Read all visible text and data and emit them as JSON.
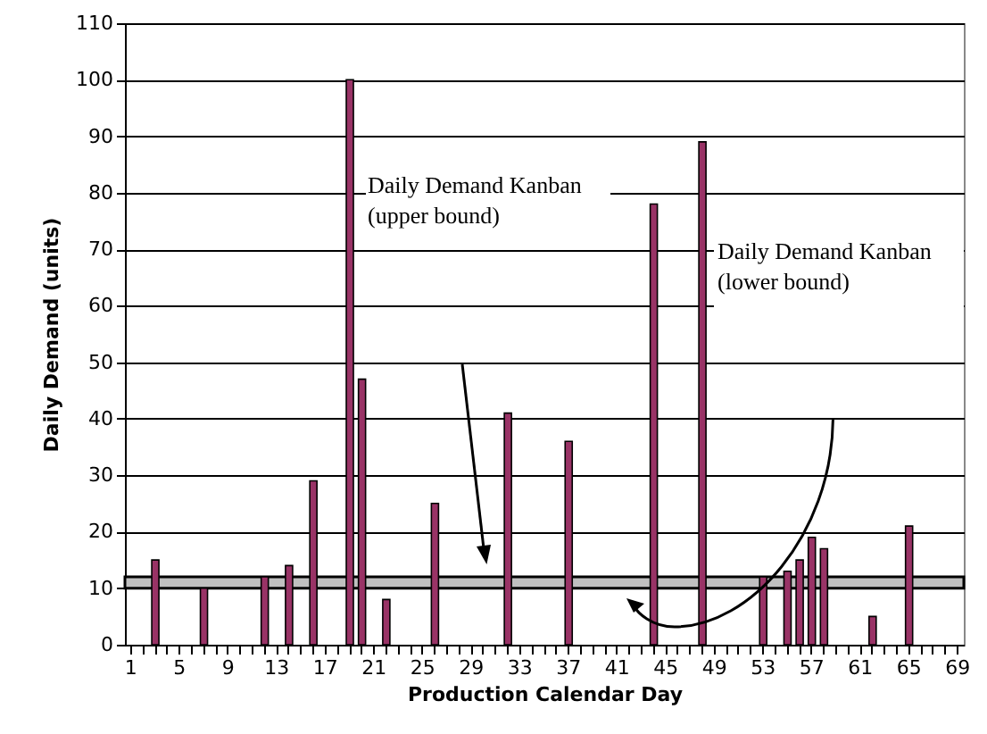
{
  "chart_data": {
    "type": "bar",
    "xlabel": "Production Calendar Day",
    "ylabel": "Daily Demand (units)",
    "categories": [
      "1",
      null,
      null,
      null,
      "5",
      null,
      null,
      null,
      "9",
      null,
      null,
      null,
      "13",
      null,
      null,
      null,
      "17",
      null,
      null,
      null,
      "21",
      null,
      null,
      null,
      "25",
      null,
      null,
      null,
      "29",
      null,
      null,
      null,
      "33",
      null,
      null,
      null,
      "37",
      null,
      null,
      null,
      "41",
      null,
      null,
      null,
      "45",
      null,
      null,
      null,
      "49",
      null,
      null,
      null,
      "53",
      null,
      null,
      null,
      "57",
      null,
      null,
      null,
      "61",
      null,
      null,
      null,
      "65",
      null,
      null,
      null,
      "69"
    ],
    "series": [
      {
        "color": "#993366",
        "values": [
          null,
          null,
          15,
          null,
          null,
          null,
          10,
          null,
          null,
          null,
          null,
          12,
          null,
          14,
          null,
          29,
          null,
          null,
          100,
          47,
          null,
          8,
          null,
          null,
          null,
          25,
          null,
          null,
          null,
          null,
          null,
          41,
          null,
          null,
          null,
          null,
          36,
          null,
          null,
          null,
          null,
          null,
          null,
          78,
          null,
          null,
          null,
          89,
          null,
          null,
          null,
          null,
          12,
          null,
          13,
          15,
          19,
          17,
          null,
          null,
          null,
          5,
          null,
          null,
          21,
          null,
          null,
          null,
          null
        ]
      }
    ],
    "ylim": [
      0,
      110
    ],
    "yticks": [
      0,
      10,
      20,
      30,
      40,
      50,
      60,
      70,
      80,
      90,
      100,
      110
    ],
    "grid": "y",
    "bands": [
      {
        "axis": "y",
        "from": 10,
        "to": 12,
        "color": "#c0c0c0"
      }
    ],
    "annotations": [
      "Daily Demand Kanban\n(upper bound)",
      "Daily Demand Kanban\n(lower bound)"
    ]
  }
}
